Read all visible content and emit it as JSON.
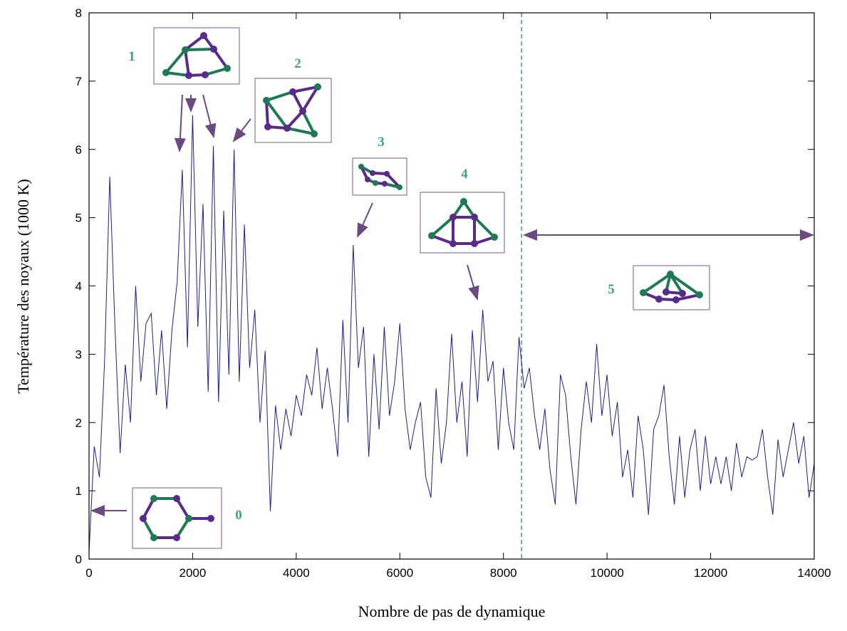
{
  "chart_data": {
    "type": "line",
    "xlabel": "Nombre de pas de dynamique",
    "ylabel": "Température des noyaux (1000 K)",
    "xlim": [
      0,
      14000
    ],
    "ylim": [
      0,
      8
    ],
    "xticks": [
      0,
      2000,
      4000,
      6000,
      8000,
      10000,
      12000,
      14000
    ],
    "yticks": [
      0,
      1,
      2,
      3,
      4,
      5,
      6,
      7,
      8
    ],
    "grid": false,
    "marker_x": 8350,
    "annotations": [
      "0",
      "1",
      "2",
      "3",
      "4",
      "5"
    ],
    "series": [
      {
        "color": "#1f1f8c",
        "x": [
          0,
          100,
          200,
          300,
          400,
          500,
          600,
          700,
          800,
          900,
          1000,
          1100,
          1200,
          1300,
          1400,
          1500,
          1600,
          1700,
          1800,
          1900,
          2000,
          2100,
          2200,
          2300,
          2400,
          2500,
          2600,
          2700,
          2800,
          2900,
          3000,
          3100,
          3200,
          3300,
          3400,
          3500,
          3600,
          3700,
          3800,
          3900,
          4000,
          4100,
          4200,
          4300,
          4400,
          4500,
          4600,
          4700,
          4800,
          4900,
          5000,
          5100,
          5200,
          5300,
          5400,
          5500,
          5600,
          5700,
          5800,
          5900,
          6000,
          6100,
          6200,
          6300,
          6400,
          6500,
          6600,
          6700,
          6800,
          6900,
          7000,
          7100,
          7200,
          7300,
          7400,
          7500,
          7600,
          7700,
          7800,
          7900,
          8000,
          8100,
          8200,
          8300,
          8400,
          8500,
          8600,
          8700,
          8800,
          8900,
          9000,
          9100,
          9200,
          9300,
          9400,
          9500,
          9600,
          9700,
          9800,
          9900,
          10000,
          10100,
          10200,
          10300,
          10400,
          10500,
          10600,
          10700,
          10800,
          10900,
          11000,
          11100,
          11200,
          11300,
          11400,
          11500,
          11600,
          11700,
          11800,
          11900,
          12000,
          12100,
          12200,
          12300,
          12400,
          12500,
          12600,
          12700,
          12800,
          12900,
          13000,
          13100,
          13200,
          13300,
          13400,
          13500,
          13600,
          13700,
          13800,
          13900,
          14000
        ],
        "values": [
          0.1,
          1.65,
          1.2,
          2.9,
          5.6,
          3.4,
          1.55,
          2.85,
          2.0,
          4.0,
          2.6,
          3.45,
          3.6,
          2.4,
          3.35,
          2.2,
          3.35,
          4.05,
          5.7,
          3.1,
          6.5,
          3.4,
          5.2,
          2.45,
          6.05,
          2.3,
          5.1,
          2.7,
          6.0,
          2.6,
          4.9,
          2.8,
          3.65,
          2.0,
          3.05,
          0.7,
          2.25,
          1.6,
          2.2,
          1.8,
          2.4,
          2.1,
          2.7,
          2.4,
          3.1,
          2.2,
          2.8,
          2.2,
          1.5,
          3.5,
          2.0,
          4.6,
          2.8,
          3.4,
          1.5,
          3.0,
          1.9,
          3.4,
          2.1,
          2.6,
          3.45,
          2.2,
          1.6,
          2.0,
          2.3,
          1.2,
          0.9,
          2.5,
          1.4,
          2.0,
          3.3,
          2.0,
          2.6,
          1.5,
          3.35,
          2.3,
          3.65,
          2.6,
          2.9,
          1.6,
          2.8,
          2.0,
          1.6,
          3.25,
          2.5,
          2.8,
          2.1,
          1.6,
          2.2,
          1.3,
          0.8,
          2.7,
          2.4,
          1.5,
          0.8,
          1.9,
          2.6,
          2.0,
          3.15,
          2.1,
          2.7,
          1.8,
          2.3,
          1.2,
          1.6,
          0.9,
          2.1,
          1.6,
          0.65,
          1.9,
          2.1,
          2.55,
          1.5,
          0.8,
          1.8,
          0.9,
          1.6,
          1.9,
          1.0,
          1.8,
          1.1,
          1.5,
          1.1,
          1.5,
          1.0,
          1.7,
          1.2,
          1.5,
          1.45,
          1.5,
          1.9,
          1.2,
          0.65,
          1.75,
          1.2,
          1.6,
          2.0,
          1.4,
          1.8,
          0.9,
          1.4
        ]
      }
    ]
  }
}
